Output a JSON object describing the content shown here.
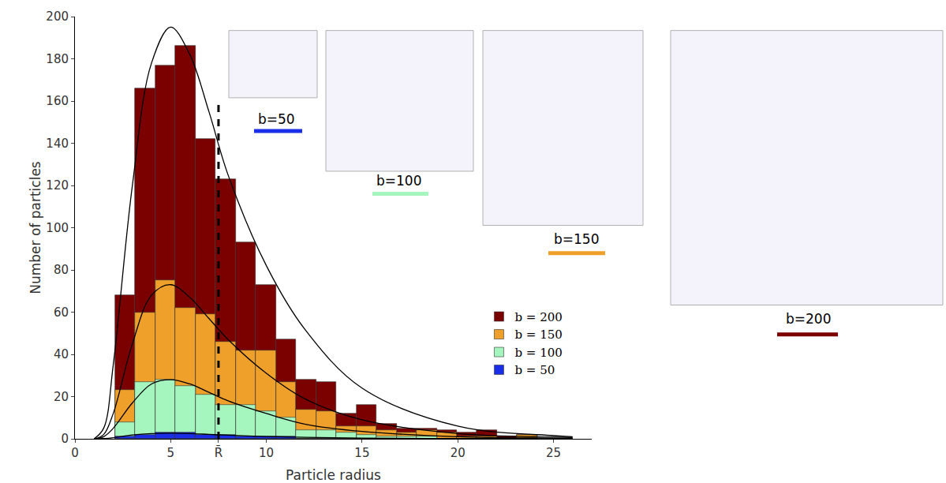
{
  "chart_data": {
    "type": "histogram",
    "x_label": "Particle radius",
    "y_label": "Number of particles",
    "bins": [
      2.1,
      3.15,
      4.2,
      5.25,
      6.3,
      7.35,
      8.4,
      9.45,
      10.5,
      11.55,
      12.6,
      13.65,
      14.7,
      15.75,
      16.8,
      17.85,
      18.9,
      19.95,
      21,
      22.05,
      23.1,
      24.15
    ],
    "stacked": false,
    "series": [
      {
        "name": "b = 200",
        "color": "#7b0000",
        "values": [
          68,
          166,
          177,
          186,
          142,
          123,
          93,
          73,
          47,
          28,
          27,
          12,
          16,
          7,
          5,
          5,
          4,
          3,
          4,
          1,
          2
        ]
      },
      {
        "name": "b = 150",
        "color": "#eea02a",
        "values": [
          23,
          60,
          75,
          62,
          59,
          46,
          42,
          42,
          27,
          14,
          13,
          6,
          6,
          4,
          3,
          4,
          3,
          1,
          1,
          0,
          2
        ]
      },
      {
        "name": "b = 100",
        "color": "#a5f5bf",
        "values": [
          8,
          27,
          28,
          25,
          21,
          16,
          16,
          13,
          10,
          4,
          4,
          3,
          2,
          1,
          1,
          1,
          0,
          0,
          0,
          0,
          0
        ]
      },
      {
        "name": "b = 50",
        "color": "#1a2ee8",
        "values": [
          1,
          2,
          3,
          3,
          2,
          2,
          1,
          1,
          1,
          0,
          0,
          0,
          0,
          0,
          0,
          0,
          0,
          0,
          0,
          0,
          0
        ]
      }
    ],
    "fits": [
      {
        "series": "b = 200",
        "x": [
          1,
          1.5,
          2,
          3,
          4,
          5,
          6,
          7,
          8,
          10,
          12,
          15,
          20,
          25,
          26
        ],
        "y": [
          0,
          5,
          35,
          120,
          178,
          195,
          182,
          155,
          125,
          82,
          52,
          24,
          6,
          1.5,
          1
        ]
      },
      {
        "series": "b = 150",
        "x": [
          1,
          1.5,
          2,
          3,
          4,
          5,
          6,
          7,
          8,
          10,
          12,
          15,
          20,
          25,
          26
        ],
        "y": [
          0,
          2,
          12,
          45,
          68,
          73,
          67,
          57,
          47,
          31,
          19,
          9,
          2.5,
          0.8,
          0.6
        ]
      },
      {
        "series": "b = 100",
        "x": [
          1,
          1.5,
          2,
          3,
          4,
          5,
          6,
          7,
          8,
          10,
          12,
          15,
          20,
          25,
          26
        ],
        "y": [
          0,
          1,
          5,
          17,
          26,
          28,
          26,
          22,
          18,
          12,
          7,
          3.5,
          1,
          0.3,
          0.2
        ]
      },
      {
        "series": "b = 50",
        "x": [
          1,
          1.5,
          2,
          3,
          4,
          5,
          6,
          7,
          8,
          10,
          12,
          15,
          20,
          25,
          26
        ],
        "y": [
          0,
          0.1,
          0.5,
          1.8,
          2.5,
          2.7,
          2.5,
          2.1,
          1.7,
          1.1,
          0.7,
          0.3,
          0.1,
          0,
          0
        ]
      }
    ],
    "mean_radius": {
      "x": 7.5,
      "y": [
        0,
        160
      ]
    },
    "xlim": [
      0,
      27
    ],
    "xticks": [
      0,
      5,
      {
        "value": 7.5,
        "label": "R̄"
      },
      10,
      15,
      20,
      25
    ],
    "ylim": [
      0,
      200
    ],
    "yticks": [
      0,
      20,
      40,
      60,
      80,
      100,
      120,
      140,
      160,
      180,
      200
    ],
    "grid": false,
    "legend": "right",
    "insets": [
      {
        "label": "b=50",
        "color": "#1a2ee8"
      },
      {
        "label": "b=100",
        "color": "#a5f5bf"
      },
      {
        "label": "b=150",
        "color": "#eea02a"
      },
      {
        "label": "b=200",
        "color": "#7b0000"
      }
    ]
  }
}
